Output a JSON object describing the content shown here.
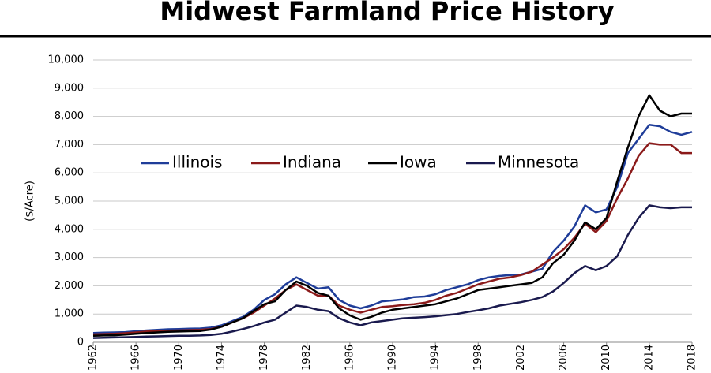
{
  "chart_data": {
    "type": "line",
    "title": "Midwest Farmland Price History",
    "ylabel": "($/Acre)",
    "x": [
      1962,
      1963,
      1964,
      1965,
      1966,
      1967,
      1968,
      1969,
      1970,
      1971,
      1972,
      1973,
      1974,
      1975,
      1976,
      1977,
      1978,
      1979,
      1980,
      1981,
      1982,
      1983,
      1984,
      1985,
      1986,
      1987,
      1988,
      1989,
      1990,
      1991,
      1992,
      1993,
      1994,
      1995,
      1996,
      1997,
      1998,
      1999,
      2000,
      2001,
      2002,
      2003,
      2004,
      2005,
      2006,
      2007,
      2008,
      2009,
      2010,
      2011,
      2012,
      2013,
      2014,
      2015,
      2016,
      2017,
      2018
    ],
    "xlim": [
      1962,
      2018
    ],
    "xticks": [
      1962,
      1966,
      1970,
      1974,
      1978,
      1982,
      1986,
      1990,
      1994,
      1998,
      2002,
      2006,
      2010,
      2014,
      2018
    ],
    "ylim": [
      0,
      10000
    ],
    "yticks": [
      0,
      {
        "value": 1000,
        "label": "1,000"
      },
      {
        "value": 2000,
        "label": "2,000"
      },
      {
        "value": 3000,
        "label": "3,000"
      },
      {
        "value": 4000,
        "label": "4,000"
      },
      {
        "value": 5000,
        "label": "5,000"
      },
      {
        "value": 6000,
        "label": "6,000"
      },
      {
        "value": 7000,
        "label": "7,000"
      },
      {
        "value": 8000,
        "label": "8,000"
      },
      {
        "value": 9000,
        "label": "9,000"
      },
      {
        "value": 10000,
        "label": "10,000"
      }
    ],
    "grid": true,
    "series": [
      {
        "name": "Illinois",
        "color": "#1f3d99",
        "values": [
          330,
          340,
          350,
          360,
          390,
          420,
          440,
          460,
          470,
          480,
          490,
          520,
          600,
          750,
          900,
          1150,
          1500,
          1700,
          2050,
          2300,
          2100,
          1900,
          1950,
          1500,
          1300,
          1200,
          1300,
          1450,
          1480,
          1520,
          1600,
          1620,
          1700,
          1850,
          1950,
          2050,
          2200,
          2300,
          2350,
          2380,
          2400,
          2500,
          2600,
          3200,
          3600,
          4100,
          4850,
          4600,
          4700,
          5500,
          6700,
          7200,
          7700,
          7650,
          7450,
          7350,
          7450
        ]
      },
      {
        "name": "Indiana",
        "color": "#8b1a1a",
        "values": [
          280,
          290,
          300,
          320,
          350,
          380,
          400,
          410,
          420,
          430,
          440,
          470,
          550,
          700,
          850,
          1050,
          1300,
          1550,
          1850,
          2050,
          1850,
          1650,
          1650,
          1300,
          1150,
          1050,
          1150,
          1250,
          1280,
          1320,
          1350,
          1400,
          1500,
          1650,
          1750,
          1900,
          2050,
          2150,
          2250,
          2300,
          2380,
          2500,
          2750,
          3000,
          3300,
          3700,
          4200,
          3900,
          4300,
          5100,
          5800,
          6600,
          7050,
          7000,
          7000,
          6700,
          6700
        ]
      },
      {
        "name": "Iowa",
        "color": "#000000",
        "values": [
          230,
          240,
          250,
          270,
          300,
          330,
          350,
          370,
          380,
          390,
          400,
          450,
          550,
          700,
          850,
          1100,
          1350,
          1450,
          1850,
          2150,
          2000,
          1750,
          1650,
          1200,
          950,
          800,
          900,
          1050,
          1150,
          1200,
          1250,
          1300,
          1350,
          1450,
          1550,
          1700,
          1850,
          1900,
          1950,
          2000,
          2050,
          2100,
          2300,
          2800,
          3100,
          3600,
          4250,
          4000,
          4400,
          5700,
          6900,
          8000,
          8750,
          8200,
          8000,
          8100,
          8100
        ]
      },
      {
        "name": "Minnesota",
        "color": "#1a1a4e",
        "values": [
          150,
          160,
          170,
          180,
          190,
          200,
          210,
          220,
          230,
          230,
          240,
          260,
          300,
          380,
          470,
          570,
          700,
          800,
          1050,
          1300,
          1250,
          1150,
          1100,
          850,
          700,
          600,
          700,
          750,
          800,
          850,
          870,
          890,
          920,
          960,
          1000,
          1070,
          1130,
          1200,
          1300,
          1360,
          1420,
          1500,
          1600,
          1800,
          2100,
          2450,
          2700,
          2550,
          2700,
          3050,
          3800,
          4400,
          4850,
          4780,
          4750,
          4780,
          4780
        ]
      }
    ]
  }
}
